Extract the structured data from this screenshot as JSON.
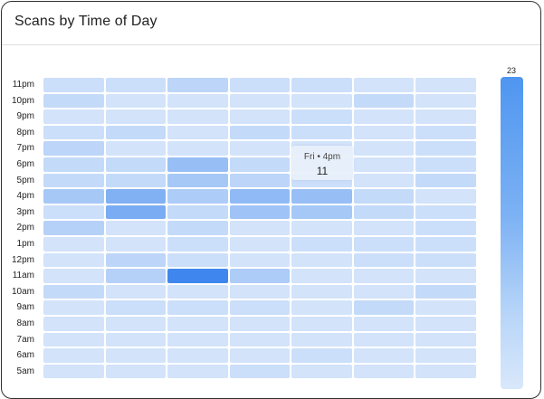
{
  "card": {
    "title": "Scans by Time of Day"
  },
  "chart_data": {
    "type": "heatmap",
    "title": "Scans by Time of Day",
    "x_categories": [
      "",
      "",
      "",
      "",
      "",
      "",
      ""
    ],
    "y_categories": [
      "11pm",
      "10pm",
      "9pm",
      "8pm",
      "7pm",
      "6pm",
      "5pm",
      "4pm",
      "3pm",
      "2pm",
      "1pm",
      "12pm",
      "11am",
      "10am",
      "9am",
      "8am",
      "7am",
      "6am",
      "5am"
    ],
    "values": [
      [
        4,
        4,
        6,
        4,
        4,
        3,
        3
      ],
      [
        5,
        3,
        3,
        3,
        3,
        5,
        3
      ],
      [
        3,
        3,
        3,
        3,
        4,
        3,
        3
      ],
      [
        4,
        5,
        3,
        5,
        4,
        3,
        4
      ],
      [
        6,
        3,
        3,
        3,
        3,
        3,
        4
      ],
      [
        5,
        5,
        11,
        5,
        4,
        3,
        4
      ],
      [
        5,
        5,
        9,
        6,
        4,
        3,
        5
      ],
      [
        9,
        14,
        8,
        12,
        11,
        5,
        3
      ],
      [
        4,
        15,
        5,
        10,
        9,
        5,
        4
      ],
      [
        7,
        3,
        5,
        3,
        3,
        3,
        4
      ],
      [
        3,
        3,
        4,
        3,
        4,
        4,
        4
      ],
      [
        3,
        6,
        4,
        3,
        3,
        4,
        4
      ],
      [
        3,
        7,
        23,
        8,
        3,
        3,
        3
      ],
      [
        5,
        3,
        3,
        3,
        3,
        3,
        5
      ],
      [
        3,
        4,
        4,
        4,
        3,
        5,
        3
      ],
      [
        3,
        3,
        3,
        3,
        3,
        3,
        3
      ],
      [
        3,
        3,
        3,
        3,
        3,
        3,
        3
      ],
      [
        3,
        3,
        3,
        3,
        4,
        3,
        3
      ],
      [
        3,
        3,
        3,
        4,
        3,
        3,
        3
      ]
    ],
    "scale": {
      "max_label": "23",
      "min": 0,
      "max": 23
    },
    "colors": {
      "low": "#e8f1fc",
      "high": "#3f87ee"
    }
  },
  "tooltip": {
    "label": "Fri • 4pm",
    "value": "11"
  }
}
